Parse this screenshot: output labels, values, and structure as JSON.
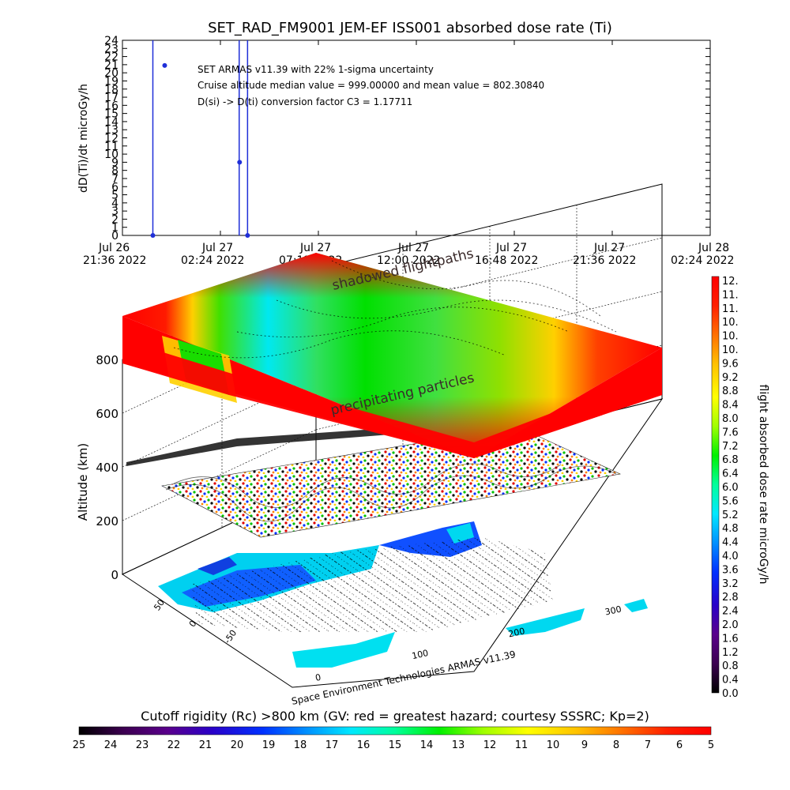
{
  "chart_data": [
    {
      "type": "scatter",
      "title": "SET_RAD_FM9001  JEM-EF ISS001 absorbed dose rate (Ti)",
      "ylabel": "dD(Ti)/dt microGy/h",
      "ylim": [
        0,
        24
      ],
      "yticks": [
        "0",
        "1",
        "2",
        "3",
        "4",
        "5",
        "6",
        "7",
        "8",
        "9",
        "10",
        "11",
        "12",
        "13",
        "14",
        "15",
        "16",
        "17",
        "18",
        "19",
        "20",
        "21",
        "22",
        "23",
        "24"
      ],
      "xticks": [
        {
          "line1": "Jul 26",
          "line2": "21:36 2022"
        },
        {
          "line1": "Jul 27",
          "line2": "02:24 2022"
        },
        {
          "line1": "Jul 27",
          "line2": "07:12 2022"
        },
        {
          "line1": "Jul 27",
          "line2": "12:00 2022"
        },
        {
          "line1": "Jul 27",
          "line2": "16:48 2022"
        },
        {
          "line1": "Jul 27",
          "line2": "21:36 2022"
        },
        {
          "line1": "Jul 28",
          "line2": "02:24 2022"
        }
      ],
      "points_hours_since_first_tick": [
        {
          "t": 1.49,
          "y": 0
        },
        {
          "t": 2.07,
          "y": 20.9
        },
        {
          "t": 5.74,
          "y": 9.0
        },
        {
          "t": 6.13,
          "y": 0
        }
      ],
      "spikes_hours_since_first_tick": [
        1.49,
        5.72,
        6.13
      ],
      "annotations": [
        "SET ARMAS v11.39 with 22% 1-sigma uncertainty",
        "Cruise altitude median value = 999.00000 and mean value = 802.30840",
        "D(si) -> D(ti) conversion factor C3 = 1.17711"
      ]
    },
    {
      "type": "heatmap",
      "ylabel": "Altitude (km)",
      "zticks": [
        "0",
        "200",
        "400",
        "600",
        "800"
      ],
      "lat_ticks": [
        "-50",
        "0",
        "50"
      ],
      "lon_ticks": [
        "0",
        "100",
        "200",
        "300"
      ],
      "labels": {
        "shadowed": "shadowed flightpaths",
        "precip": "precipitating particles",
        "credit": "Space Environment Technologies ARMAS v11.39"
      }
    },
    {
      "type": "heatmap",
      "title": "flight absorbed dose rate microGy/h",
      "colorbar_ticks": [
        "12.",
        "11.",
        "11.",
        "10.",
        "10.",
        "10.",
        "9.6",
        "9.2",
        "8.8",
        "8.4",
        "8.0",
        "7.6",
        "7.2",
        "6.8",
        "6.4",
        "6.0",
        "5.6",
        "5.2",
        "4.8",
        "4.4",
        "4.0",
        "3.6",
        "3.2",
        "2.8",
        "2.4",
        "2.0",
        "1.6",
        "1.2",
        "0.8",
        "0.4",
        "0.0"
      ]
    },
    {
      "type": "heatmap",
      "title": "Cutoff rigidity (Rc) >800 km (GV: red = greatest hazard; courtesy SSSRC; Kp=2)",
      "colorbar_ticks": [
        "25",
        "24",
        "23",
        "22",
        "21",
        "20",
        "19",
        "18",
        "17",
        "16",
        "15",
        "14",
        "13",
        "12",
        "11",
        "10",
        "9",
        "8",
        "7",
        "6",
        "5"
      ]
    }
  ],
  "colors": {
    "series": "#1f2fd8",
    "rainbow": [
      "#000000",
      "#3c0050",
      "#5a008c",
      "#2a00c8",
      "#0030ff",
      "#0090ff",
      "#00e8ff",
      "#00ff9c",
      "#00f000",
      "#a0ff00",
      "#ffff00",
      "#ffc000",
      "#ff7000",
      "#ff2000",
      "#ff0000"
    ]
  }
}
